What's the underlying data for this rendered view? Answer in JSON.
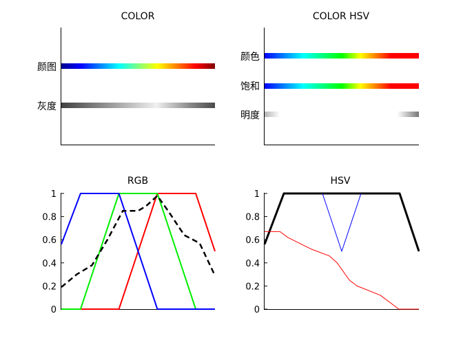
{
  "chart_data": [
    {
      "type": "colorbar",
      "title": "COLOR",
      "rows": [
        {
          "label": "颜图",
          "stops": [
            {
              "offset": 0,
              "color": "#00008f"
            },
            {
              "offset": 0.125,
              "color": "#0000ff"
            },
            {
              "offset": 0.375,
              "color": "#00ffff"
            },
            {
              "offset": 0.625,
              "color": "#ffff00"
            },
            {
              "offset": 0.875,
              "color": "#ff0000"
            },
            {
              "offset": 1,
              "color": "#800000"
            }
          ]
        },
        {
          "label": "灰度",
          "stops": [
            {
              "offset": 0,
              "color": "#404040"
            },
            {
              "offset": 0.4,
              "color": "#b0b0b0"
            },
            {
              "offset": 0.62,
              "color": "#f0f0f0"
            },
            {
              "offset": 0.82,
              "color": "#909090"
            },
            {
              "offset": 1,
              "color": "#4a4a4a"
            }
          ]
        }
      ]
    },
    {
      "type": "colorbar",
      "title": "COLOR HSV",
      "rows": [
        {
          "label": "颜色",
          "stops": [
            {
              "offset": 0,
              "color": "#0000ff"
            },
            {
              "offset": 0.25,
              "color": "#00ffff"
            },
            {
              "offset": 0.5,
              "color": "#00ff00"
            },
            {
              "offset": 0.62,
              "color": "#ffff00"
            },
            {
              "offset": 0.82,
              "color": "#ff0000"
            },
            {
              "offset": 1,
              "color": "#ff0000"
            }
          ]
        },
        {
          "label": "饱和",
          "stops": [
            {
              "offset": 0,
              "color": "#0000ff"
            },
            {
              "offset": 0.25,
              "color": "#00ffff"
            },
            {
              "offset": 0.5,
              "color": "#00ff00"
            },
            {
              "offset": 0.62,
              "color": "#ffff00"
            },
            {
              "offset": 0.82,
              "color": "#ff0000"
            },
            {
              "offset": 1,
              "color": "#ff0000"
            }
          ]
        },
        {
          "label": "明度",
          "stops": [
            {
              "offset": 0,
              "color": "#b4b4b4"
            },
            {
              "offset": 0.1,
              "color": "#ffffff"
            },
            {
              "offset": 0.86,
              "color": "#ffffff"
            },
            {
              "offset": 1,
              "color": "#787878"
            }
          ]
        }
      ]
    },
    {
      "type": "line",
      "title": "RGB",
      "xlim": [
        0,
        1
      ],
      "ylim": [
        0,
        1
      ],
      "yticks": [
        "0",
        "0.2",
        "0.4",
        "0.6",
        "0.8",
        "1"
      ],
      "series": [
        {
          "color": "#ff0000",
          "width": 2,
          "dash": "",
          "x": [
            0,
            0.375,
            0.625,
            0.875,
            1
          ],
          "y": [
            0,
            0,
            1,
            1,
            0.5
          ]
        },
        {
          "color": "#00ee00",
          "width": 2,
          "dash": "",
          "x": [
            0,
            0.125,
            0.375,
            0.625,
            0.875,
            1
          ],
          "y": [
            0,
            0,
            1,
            1,
            0,
            0
          ]
        },
        {
          "color": "#0000ff",
          "width": 2,
          "dash": "",
          "x": [
            0,
            0.125,
            0.375,
            0.625,
            1
          ],
          "y": [
            0.56,
            1,
            1,
            0,
            0
          ]
        },
        {
          "color": "#000000",
          "width": 2.5,
          "dash": "8,5",
          "x": [
            0,
            0.1,
            0.2,
            0.3,
            0.4,
            0.5,
            0.55,
            0.625,
            0.7,
            0.8,
            0.9,
            1
          ],
          "y": [
            0.19,
            0.3,
            0.38,
            0.6,
            0.85,
            0.85,
            0.89,
            0.98,
            0.84,
            0.64,
            0.57,
            0.29
          ]
        }
      ]
    },
    {
      "type": "line",
      "title": "HSV",
      "xlim": [
        0,
        1
      ],
      "ylim": [
        0,
        1
      ],
      "yticks": [
        "0",
        "0.2",
        "0.4",
        "0.6",
        "0.8",
        "1"
      ],
      "series": [
        {
          "color": "#000000",
          "width": 3,
          "dash": "",
          "x": [
            0,
            0.125,
            0.875,
            1
          ],
          "y": [
            0.56,
            1,
            1,
            0.5
          ]
        },
        {
          "color": "#0000ff",
          "width": 1,
          "dash": "",
          "x": [
            0.375,
            0.5,
            0.625
          ],
          "y": [
            1,
            0.5,
            1
          ]
        },
        {
          "color": "#ff0000",
          "width": 1,
          "dash": "",
          "x": [
            0,
            0.1,
            0.15,
            0.3,
            0.42,
            0.47,
            0.55,
            0.6,
            0.75,
            0.87,
            1
          ],
          "y": [
            0.67,
            0.67,
            0.62,
            0.52,
            0.46,
            0.4,
            0.25,
            0.2,
            0.12,
            0,
            0
          ]
        }
      ]
    }
  ]
}
